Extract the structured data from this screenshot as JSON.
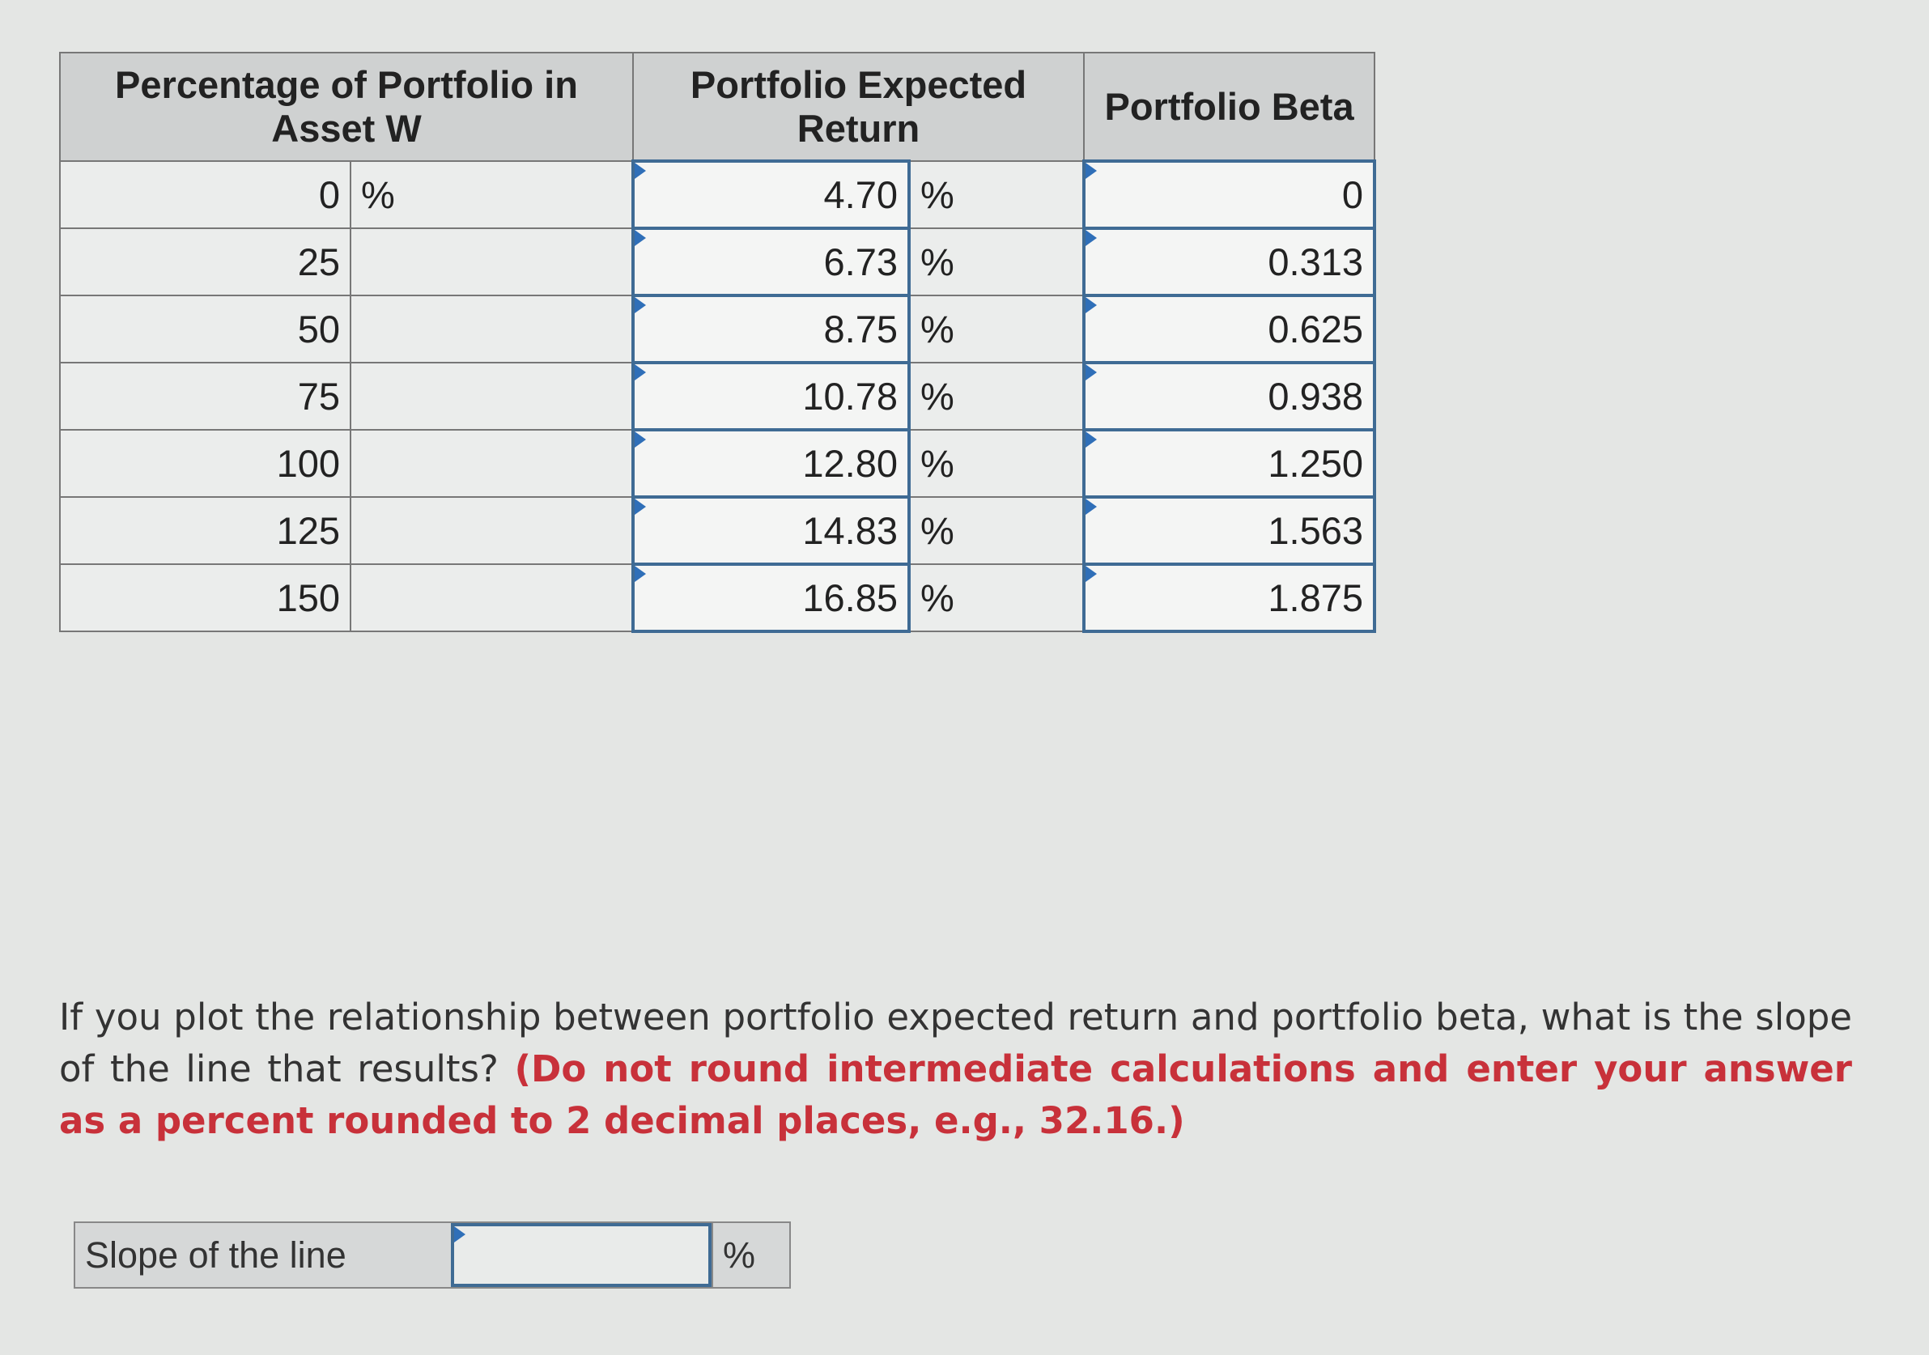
{
  "table": {
    "headers": [
      "Percentage of Portfolio in Asset W",
      "Portfolio Expected Return",
      "Portfolio Beta"
    ],
    "rows": [
      {
        "percent": "0",
        "percent_unit": "%",
        "return": "4.70",
        "return_unit": "%",
        "beta": "0"
      },
      {
        "percent": "25",
        "return": "6.73",
        "return_unit": "%",
        "beta": "0.313"
      },
      {
        "percent": "50",
        "return": "8.75",
        "return_unit": "%",
        "beta": "0.625"
      },
      {
        "percent": "75",
        "return": "10.78",
        "return_unit": "%",
        "beta": "0.938"
      },
      {
        "percent": "100",
        "return": "12.80",
        "return_unit": "%",
        "beta": "1.250"
      },
      {
        "percent": "125",
        "return": "14.83",
        "return_unit": "%",
        "beta": "1.563"
      },
      {
        "percent": "150",
        "return": "16.85",
        "return_unit": "%",
        "beta": "1.875"
      }
    ]
  },
  "question": [
    {
      "text": "If you plot the relationship between portfolio expected return and portfolio beta, what is the slope of the line that results? ",
      "emphasis": false
    },
    {
      "text": "(Do not round intermediate calculations and enter your answer as a percent rounded to 2 decimal places, e.g., 32.16.)",
      "emphasis": true
    }
  ],
  "answer": {
    "label": "Slope of the line",
    "unit": "%"
  }
}
